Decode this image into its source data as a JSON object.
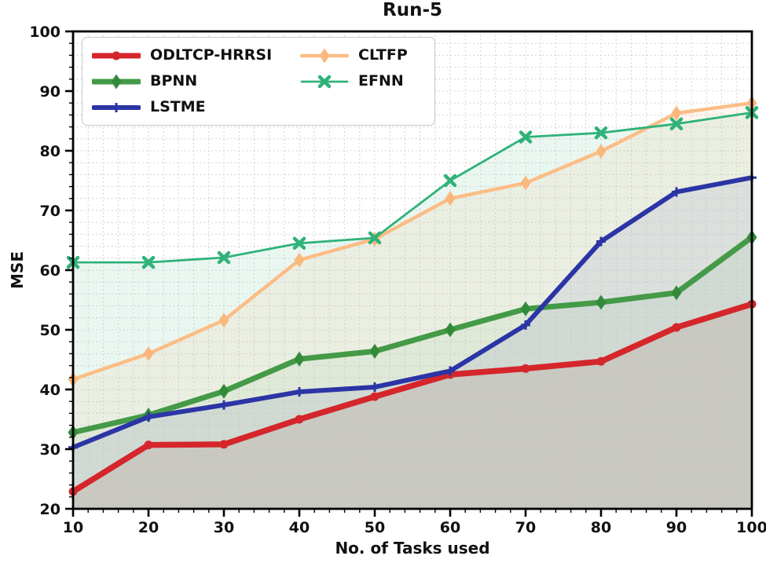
{
  "figure": {
    "title": "Run-5",
    "xlabel": "No. of Tasks used",
    "ylabel": "MSE"
  },
  "axes": {
    "x_ticks": [
      10,
      20,
      30,
      40,
      50,
      60,
      70,
      80,
      90,
      100
    ],
    "y_ticks": [
      20,
      30,
      40,
      50,
      60,
      70,
      80,
      90,
      100
    ],
    "minor_step": 2,
    "grid_style": "dotted",
    "grid_color": "#c4c4c4",
    "spine_color": "#000000"
  },
  "legend": {
    "position": "upper-left",
    "columns": 2,
    "items": [
      "ODLTCP-HRRSI",
      "BPNN",
      "LSTME",
      "CLTFP",
      "EFNN"
    ]
  },
  "chart_data": {
    "type": "line",
    "title": "Run-5",
    "xlabel": "No. of Tasks used",
    "ylabel": "MSE",
    "x": [
      10,
      20,
      30,
      40,
      50,
      60,
      70,
      80,
      90,
      100
    ],
    "xlim": [
      10,
      100
    ],
    "ylim": [
      20,
      100
    ],
    "grid": "dotted minor grid every 2 units, both axes",
    "legend_position": "upper left, 2 columns",
    "series": [
      {
        "name": "ODLTCP-HRRSI",
        "color": "#d5262b",
        "marker": "circle",
        "marker_color": "#d5262b",
        "line_width": 7.5,
        "fill": "rgba(150,60,40,0.10)",
        "values": [
          22.9,
          30.7,
          30.8,
          35.0,
          38.8,
          42.5,
          43.5,
          44.7,
          50.4,
          54.3
        ]
      },
      {
        "name": "BPNN",
        "color": "#449a47",
        "marker": "diamond",
        "marker_color": "#338a3b",
        "line_width": 7,
        "fill": "rgba(68,154,71,0.07)",
        "values": [
          32.8,
          35.7,
          39.7,
          45.1,
          46.4,
          50.0,
          53.5,
          54.6,
          56.2,
          65.5
        ]
      },
      {
        "name": "LSTME",
        "color": "#2b35a5",
        "marker": "plus",
        "marker_color": "#2b35a5",
        "line_width": 6,
        "fill": "rgba(43,53,165,0.08)",
        "values": [
          30.3,
          35.4,
          37.4,
          39.6,
          40.4,
          43.1,
          50.8,
          64.8,
          73.1,
          75.5
        ]
      },
      {
        "name": "CLTFP",
        "color": "#fbbd85",
        "marker": "diamond",
        "marker_color": "#fab87d",
        "line_width": 4.5,
        "fill": "rgba(251,189,133,0.13)",
        "values": [
          41.7,
          46.0,
          51.6,
          61.7,
          65.2,
          72.0,
          74.6,
          79.9,
          86.3,
          88.0
        ]
      },
      {
        "name": "EFNN",
        "color": "#30b27a",
        "marker": "x",
        "marker_color": "#30b27a",
        "line_width": 2.8,
        "fill": "rgba(48,178,122,0.10)",
        "values": [
          61.3,
          61.3,
          62.1,
          64.5,
          65.4,
          75.0,
          82.3,
          83.0,
          84.5,
          86.4
        ]
      }
    ]
  }
}
